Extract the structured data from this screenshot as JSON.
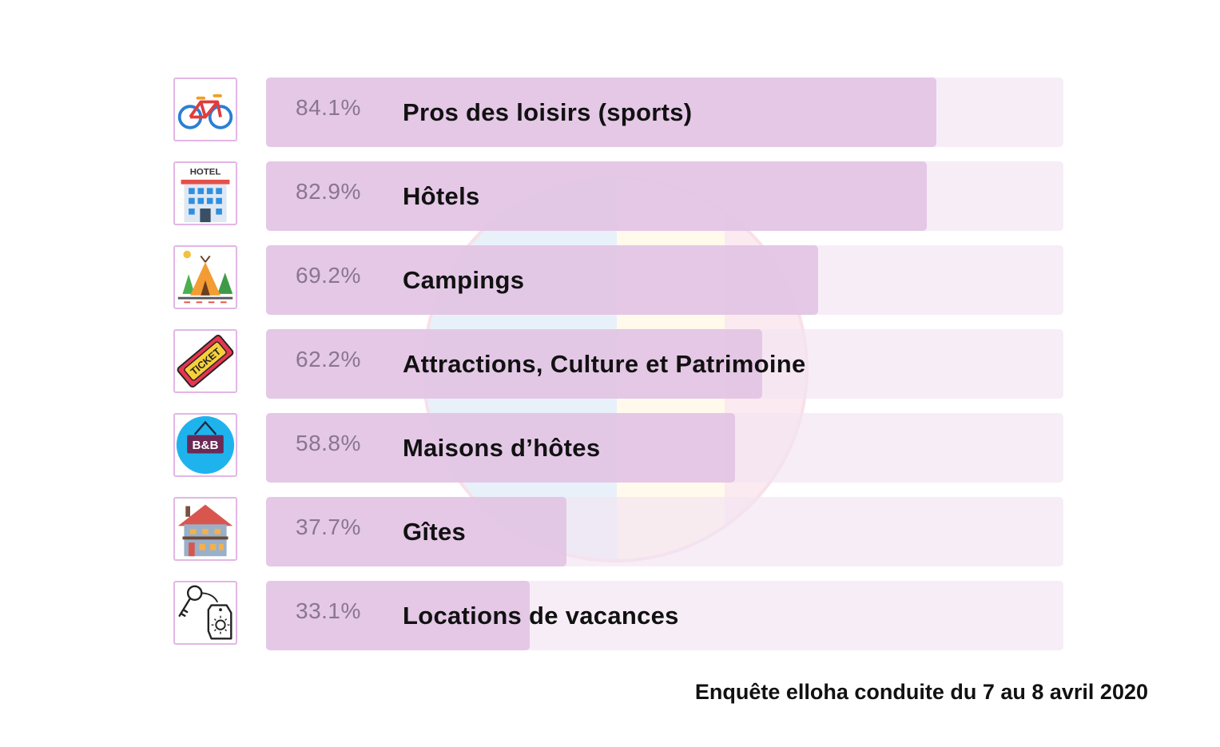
{
  "chart_data": {
    "type": "bar",
    "orientation": "horizontal",
    "categories": [
      "Pros des loisirs (sports)",
      "Hôtels",
      "Campings",
      "Attractions, Culture et Patrimoine",
      "Maisons d’hôtes",
      "Gîtes",
      "Locations de vacances"
    ],
    "values": [
      84.1,
      82.9,
      69.2,
      62.2,
      58.8,
      37.7,
      33.1
    ],
    "value_labels": [
      "84.1%",
      "82.9%",
      "69.2%",
      "62.2%",
      "58.8%",
      "37.7%",
      "33.1%"
    ],
    "icons": [
      "bicycle-icon",
      "hotel-icon",
      "camping-tent-icon",
      "ticket-icon",
      "bnb-sign-icon",
      "chalet-icon",
      "key-tag-icon"
    ],
    "xlim": [
      0,
      100
    ],
    "unit": "%",
    "colors": {
      "bar": "#e2c4e4",
      "track": "#f5ecf5",
      "icon_border": "#e3b6e6",
      "value_text": "#8a7690"
    }
  },
  "footnote": "Enquête elloha conduite du 7 au 8 avril 2020"
}
